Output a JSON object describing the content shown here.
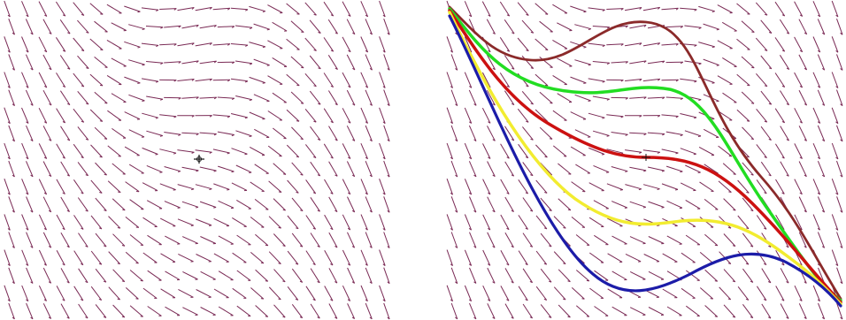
{
  "colors": {
    "field_marks": "#7a2a55",
    "background": "#ffffff",
    "center_marker": "#111111"
  },
  "panels": [
    {
      "name": "direction-field",
      "shows_solution_curves": false
    },
    {
      "name": "direction-field-with-solutions",
      "shows_solution_curves": true
    }
  ],
  "solution_curves": [
    {
      "color_name": "brown",
      "color": "#8b2a2a"
    },
    {
      "color_name": "green",
      "color": "#22dd22"
    },
    {
      "color_name": "red",
      "color": "#cc1111"
    },
    {
      "color_name": "yellow",
      "color": "#f2ec30"
    },
    {
      "color_name": "blue",
      "color": "#1c1ca8"
    }
  ]
}
